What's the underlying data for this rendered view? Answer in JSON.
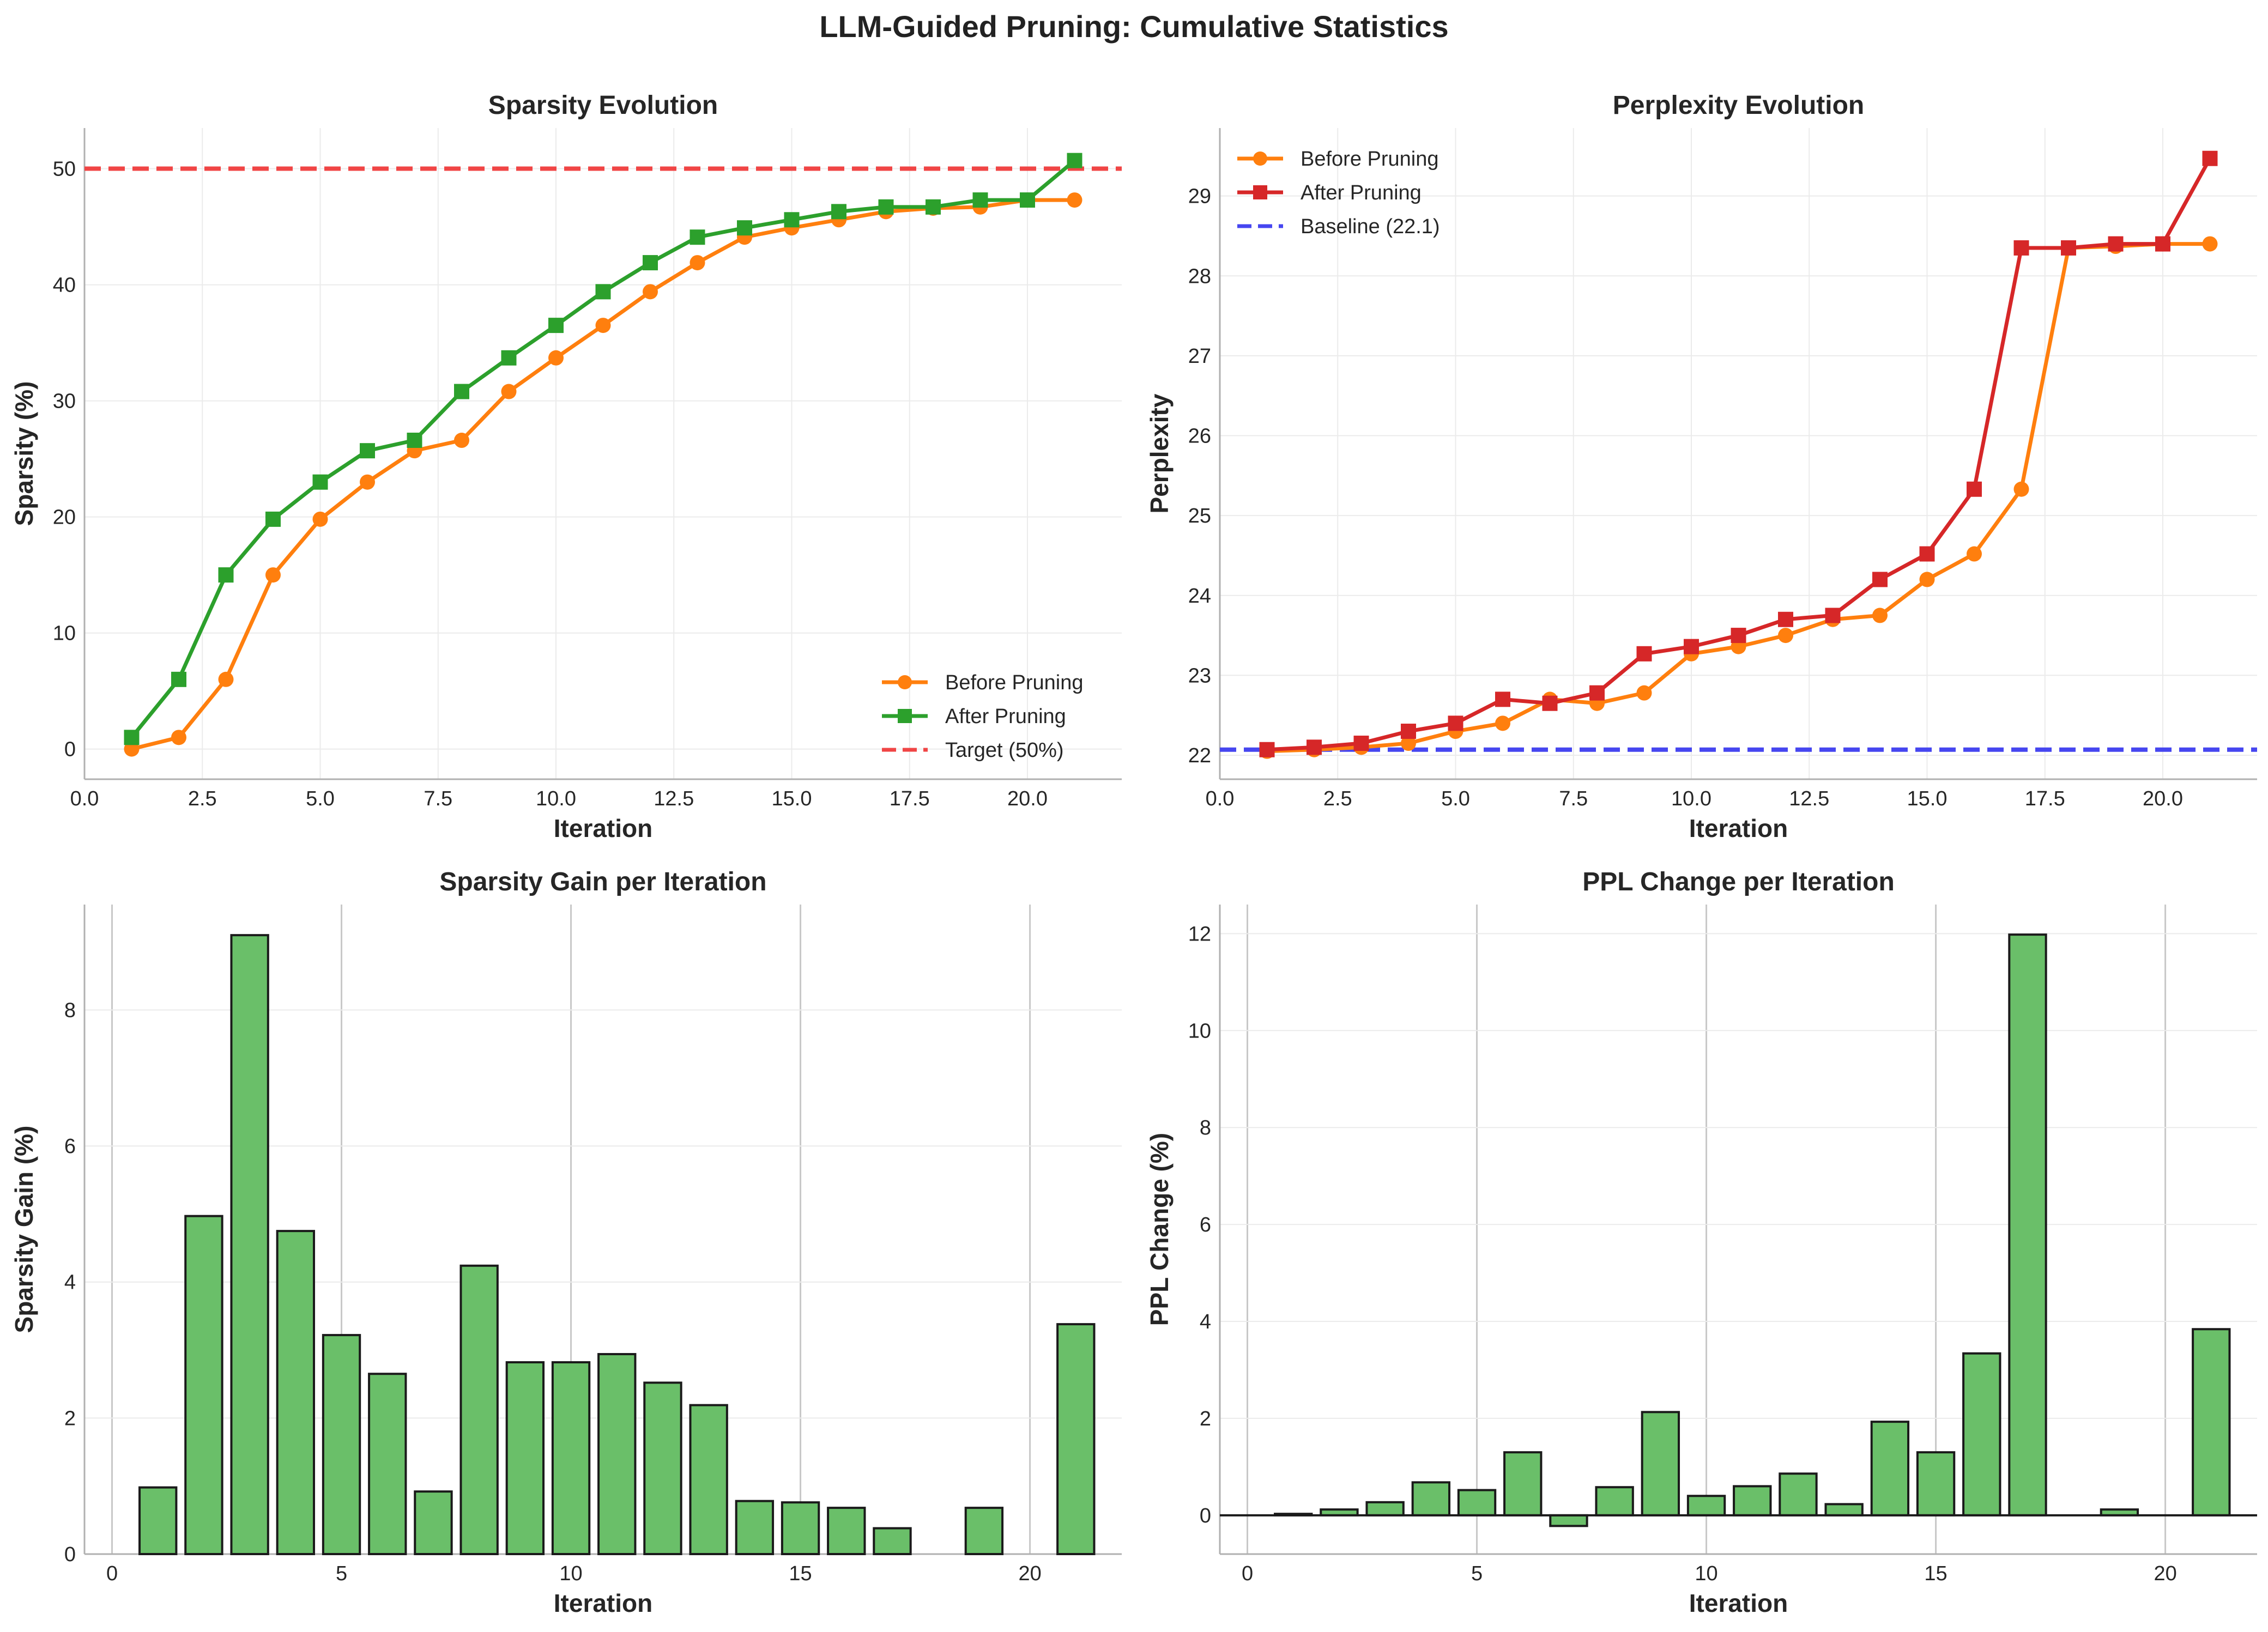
{
  "page_title": "LLM-Guided Pruning: Cumulative Statistics",
  "colors": {
    "before": "#ff7f0e",
    "after_sparsity": "#2ca02c",
    "after_ppl": "#d62728",
    "target": "#f04545",
    "baseline": "#4646f0",
    "bar_fill": "#6abf69",
    "bar_edge": "#1a1a1a"
  },
  "chart_data": [
    {
      "type": "line",
      "title": "Sparsity Evolution",
      "xlabel": "Iteration",
      "ylabel": "Sparsity (%)",
      "xlim": [
        0,
        22
      ],
      "ylim": [
        -2.6,
        53.5
      ],
      "xticks": [
        0,
        2.5,
        5,
        7.5,
        10,
        12.5,
        15,
        17.5,
        20
      ],
      "xtick_labels": [
        "0.0",
        "2.5",
        "5.0",
        "7.5",
        "10.0",
        "12.5",
        "15.0",
        "17.5",
        "20.0"
      ],
      "yticks": [
        0,
        10,
        20,
        30,
        40,
        50
      ],
      "ytick_labels": [
        "0",
        "10",
        "20",
        "30",
        "40",
        "50"
      ],
      "legend_position": "lower-right",
      "x": [
        1,
        2,
        3,
        4,
        5,
        6,
        7,
        8,
        9,
        10,
        11,
        12,
        13,
        14,
        15,
        16,
        17,
        18,
        19,
        20,
        21
      ],
      "series": [
        {
          "name": "Before Pruning",
          "marker": "circle",
          "color_key": "before",
          "values": [
            0,
            1,
            6,
            15,
            19.8,
            23,
            25.7,
            26.6,
            30.8,
            33.7,
            36.5,
            39.4,
            41.9,
            44.1,
            44.9,
            45.6,
            46.3,
            46.6,
            46.7,
            47.3,
            47.3
          ]
        },
        {
          "name": "After Pruning",
          "marker": "square",
          "color_key": "after_sparsity",
          "values": [
            1,
            6,
            15,
            19.8,
            23,
            25.7,
            26.6,
            30.8,
            33.7,
            36.5,
            39.4,
            41.9,
            44.1,
            44.9,
            45.6,
            46.3,
            46.7,
            46.7,
            47.3,
            47.3,
            50.7
          ]
        }
      ],
      "reference_line": {
        "name": "Target (50%)",
        "value": 50,
        "color_key": "target"
      }
    },
    {
      "type": "line",
      "title": "Perplexity Evolution",
      "xlabel": "Iteration",
      "ylabel": "Perplexity",
      "xlim": [
        0,
        22
      ],
      "ylim": [
        21.7,
        29.85
      ],
      "xticks": [
        0,
        2.5,
        5,
        7.5,
        10,
        12.5,
        15,
        17.5,
        20
      ],
      "xtick_labels": [
        "0.0",
        "2.5",
        "5.0",
        "7.5",
        "10.0",
        "12.5",
        "15.0",
        "17.5",
        "20.0"
      ],
      "yticks": [
        22,
        23,
        24,
        25,
        26,
        27,
        28,
        29
      ],
      "ytick_labels": [
        "22",
        "23",
        "24",
        "25",
        "26",
        "27",
        "28",
        "29"
      ],
      "legend_position": "upper-left",
      "x": [
        1,
        2,
        3,
        4,
        5,
        6,
        7,
        8,
        9,
        10,
        11,
        12,
        13,
        14,
        15,
        16,
        17,
        18,
        19,
        20,
        21
      ],
      "series": [
        {
          "name": "Before Pruning",
          "marker": "circle",
          "color_key": "before",
          "values": [
            22.05,
            22.07,
            22.1,
            22.15,
            22.3,
            22.4,
            22.7,
            22.65,
            22.78,
            23.27,
            23.36,
            23.5,
            23.7,
            23.75,
            24.2,
            24.52,
            25.33,
            28.35,
            28.37,
            28.4,
            28.4
          ]
        },
        {
          "name": "After Pruning",
          "marker": "square",
          "color_key": "after_ppl",
          "values": [
            22.07,
            22.1,
            22.15,
            22.3,
            22.4,
            22.7,
            22.65,
            22.78,
            23.27,
            23.36,
            23.5,
            23.7,
            23.75,
            24.2,
            24.52,
            25.33,
            28.35,
            28.35,
            28.4,
            28.4,
            29.47
          ]
        }
      ],
      "reference_line": {
        "name": "Baseline (22.1)",
        "value": 22.07,
        "color_key": "baseline"
      }
    },
    {
      "type": "bar",
      "title": "Sparsity Gain per Iteration",
      "xlabel": "Iteration",
      "ylabel": "Sparsity Gain (%)",
      "xlim": [
        -0.6,
        22
      ],
      "ylim": [
        0,
        9.55
      ],
      "xticks": [
        0,
        5,
        10,
        15,
        20
      ],
      "xtick_labels": [
        "0",
        "5",
        "10",
        "15",
        "20"
      ],
      "yticks": [
        0,
        2,
        4,
        6,
        8
      ],
      "ytick_labels": [
        "0",
        "2",
        "4",
        "6",
        "8"
      ],
      "bar_width": 0.8,
      "x": [
        1,
        2,
        3,
        4,
        5,
        6,
        7,
        8,
        9,
        10,
        11,
        12,
        13,
        14,
        15,
        16,
        17,
        18,
        19,
        20,
        21
      ],
      "values": [
        0.98,
        4.97,
        9.1,
        4.75,
        3.22,
        2.65,
        0.92,
        4.24,
        2.82,
        2.82,
        2.94,
        2.52,
        2.19,
        0.78,
        0.76,
        0.68,
        0.38,
        0,
        0.68,
        0,
        3.38
      ]
    },
    {
      "type": "bar",
      "title": "PPL Change per Iteration",
      "xlabel": "Iteration",
      "ylabel": "PPL Change (%)",
      "xlim": [
        -0.6,
        22
      ],
      "ylim": [
        -0.8,
        12.6
      ],
      "xticks": [
        0,
        5,
        10,
        15,
        20
      ],
      "xtick_labels": [
        "0",
        "5",
        "10",
        "15",
        "20"
      ],
      "yticks": [
        0,
        2,
        4,
        6,
        8,
        10,
        12
      ],
      "ytick_labels": [
        "0",
        "2",
        "4",
        "6",
        "8",
        "10",
        "12"
      ],
      "bar_width": 0.8,
      "zero_line": true,
      "x": [
        1,
        2,
        3,
        4,
        5,
        6,
        7,
        8,
        9,
        10,
        11,
        12,
        13,
        14,
        15,
        16,
        17,
        18,
        19,
        20,
        21
      ],
      "values": [
        0.03,
        0.12,
        0.27,
        0.68,
        0.52,
        1.3,
        -0.22,
        0.58,
        2.13,
        0.4,
        0.6,
        0.86,
        0.23,
        1.93,
        1.3,
        3.34,
        11.98,
        0,
        0.12,
        0,
        3.84
      ]
    }
  ]
}
